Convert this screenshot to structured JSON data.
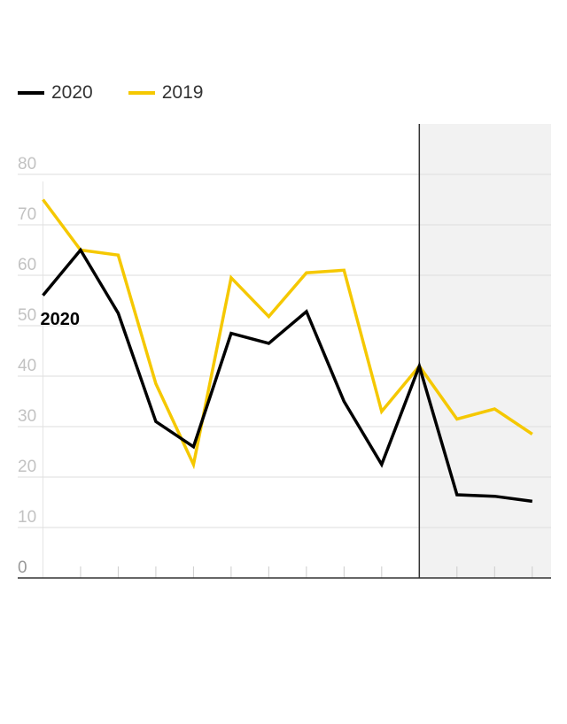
{
  "legend": {
    "items": [
      {
        "label": "2020",
        "color": "#000000"
      },
      {
        "label": "2019",
        "color": "#f5c800"
      }
    ]
  },
  "chart_data": {
    "type": "line",
    "title": "",
    "xlabel": "",
    "ylabel": "",
    "ylim": [
      0,
      80
    ],
    "yticks": [
      0,
      10,
      20,
      30,
      40,
      50,
      60,
      70,
      80
    ],
    "x": [
      1,
      2,
      3,
      4,
      5,
      6,
      7,
      8,
      9,
      10,
      11,
      12,
      13,
      14
    ],
    "xlim": [
      0.33,
      14.5
    ],
    "shaded_region": {
      "from": 11,
      "to": 14.5,
      "color": "#f2f2f2"
    },
    "series": [
      {
        "name": "2020",
        "color": "#000000",
        "values": [
          56,
          65,
          52.5,
          31,
          26,
          48.5,
          46.5,
          52.8,
          35,
          22.5,
          42,
          16.5,
          16.2,
          15.2
        ],
        "label": "2020"
      },
      {
        "name": "2019",
        "color": "#f5c800",
        "values": [
          75,
          65,
          64,
          38.5,
          22.5,
          59.5,
          51.8,
          60.5,
          61,
          33,
          42,
          31.5,
          33.5,
          28.5
        ]
      }
    ],
    "grid": true,
    "legend_position": "top-left"
  }
}
